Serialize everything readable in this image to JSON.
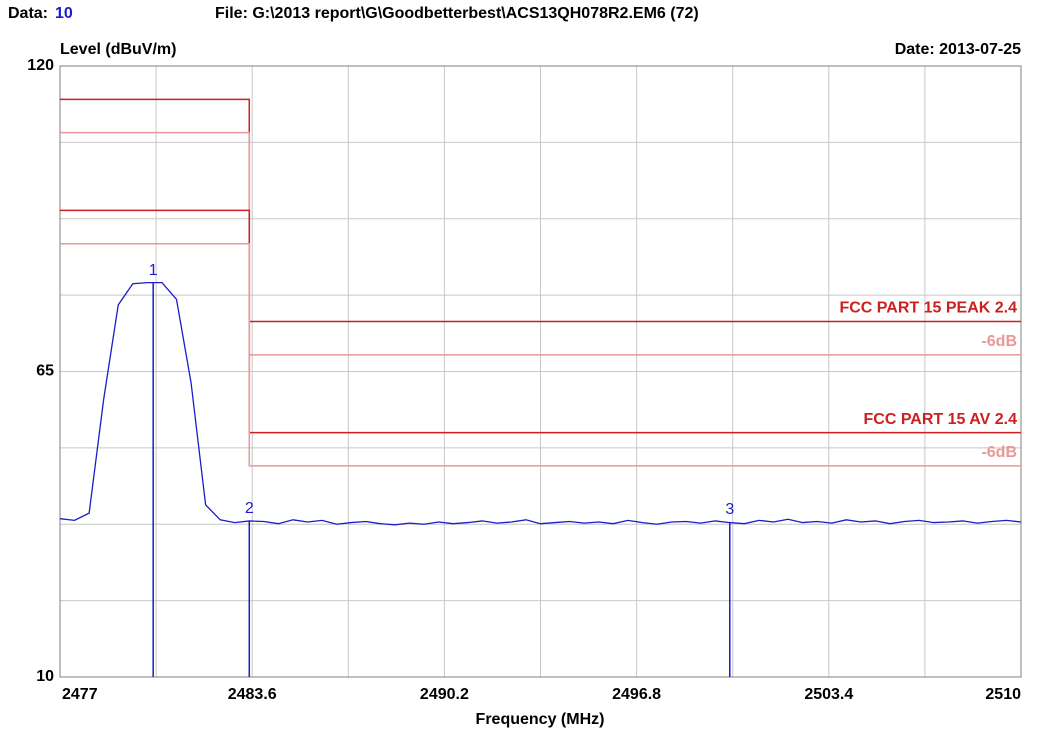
{
  "chart_data": {
    "type": "line",
    "data_label": "Data:",
    "data_number": "10",
    "file": "File: G:\\2013 report\\G\\Goodbetterbest\\ACS13QH078R2.EM6  (72)",
    "ylabel": "Level (dBuV/m)",
    "date": "Date: 2013-07-25",
    "xlabel": "Frequency (MHz)",
    "xlim": [
      2477,
      2510
    ],
    "ylim": [
      10,
      120
    ],
    "xticks": [
      2477,
      2483.6,
      2490.2,
      2496.8,
      2503.4,
      2510
    ],
    "yticks": [
      10,
      65,
      120
    ],
    "xgrid": [
      2477,
      2480.3,
      2483.6,
      2486.9,
      2490.2,
      2493.5,
      2496.8,
      2500.1,
      2503.4,
      2506.7,
      2510
    ],
    "ygrid": [
      10,
      23.75,
      37.5,
      51.25,
      65,
      78.75,
      92.5,
      106.25,
      120
    ],
    "grid": true,
    "series": [
      {
        "name": "Trace",
        "color": "#1c1cc8",
        "x": [
          2477,
          2477.5,
          2478,
          2478.5,
          2479,
          2479.5,
          2480,
          2480.5,
          2481,
          2481.5,
          2482,
          2482.5,
          2483,
          2483.5,
          2484,
          2484.5,
          2485,
          2485.5,
          2486,
          2486.5,
          2487,
          2487.5,
          2488,
          2488.5,
          2489,
          2489.5,
          2490,
          2490.5,
          2491,
          2491.5,
          2492,
          2492.5,
          2493,
          2493.5,
          2494,
          2494.5,
          2495,
          2495.5,
          2496,
          2496.5,
          2497,
          2497.5,
          2498,
          2498.5,
          2499,
          2499.5,
          2500,
          2500.5,
          2501,
          2501.5,
          2502,
          2502.5,
          2503,
          2503.5,
          2504,
          2504.5,
          2505,
          2505.5,
          2506,
          2506.5,
          2507,
          2507.5,
          2508,
          2508.5,
          2509,
          2509.5,
          2510
        ],
        "values": [
          38.5,
          38.2,
          39.5,
          60,
          77,
          80.8,
          81,
          81,
          78,
          63,
          41,
          38.3,
          37.8,
          38.1,
          38.0,
          37.6,
          38.3,
          37.9,
          38.2,
          37.5,
          37.8,
          38.0,
          37.6,
          37.4,
          37.7,
          37.5,
          37.9,
          37.6,
          37.8,
          38.1,
          37.7,
          37.9,
          38.3,
          37.6,
          37.8,
          38.0,
          37.7,
          37.9,
          37.6,
          38.2,
          37.8,
          37.5,
          37.9,
          38.0,
          37.7,
          38.1,
          37.8,
          37.6,
          38.2,
          37.9,
          38.4,
          37.8,
          38.0,
          37.7,
          38.3,
          37.9,
          38.1,
          37.6,
          38.0,
          38.2,
          37.8,
          37.9,
          38.1,
          37.7,
          38.0,
          38.2,
          37.9
        ]
      }
    ],
    "limits": [
      {
        "name": "FCC PART 15 PEAK 2.4",
        "color": "#cc1f1f",
        "x": [
          2477,
          2483.5,
          2483.5,
          2510
        ],
        "values": [
          114,
          114,
          74,
          74
        ]
      },
      {
        "name": "-6dB",
        "color": "#e89898",
        "x": [
          2477,
          2483.5,
          2483.5,
          2510
        ],
        "values": [
          108,
          108,
          68,
          68
        ]
      },
      {
        "name": "FCC PART 15  AV 2.4",
        "color": "#cc1f1f",
        "x": [
          2477,
          2483.5,
          2483.5,
          2510
        ],
        "values": [
          94,
          94,
          54,
          54
        ]
      },
      {
        "name": "-6dB",
        "color": "#e89898",
        "x": [
          2477,
          2483.5,
          2483.5,
          2510
        ],
        "values": [
          88,
          88,
          48,
          48
        ]
      }
    ],
    "markers": [
      {
        "label": "1",
        "x": 2480.2,
        "value": 81
      },
      {
        "label": "2",
        "x": 2483.5,
        "value": 38.1
      },
      {
        "label": "3",
        "x": 2500,
        "value": 37.9
      }
    ]
  }
}
